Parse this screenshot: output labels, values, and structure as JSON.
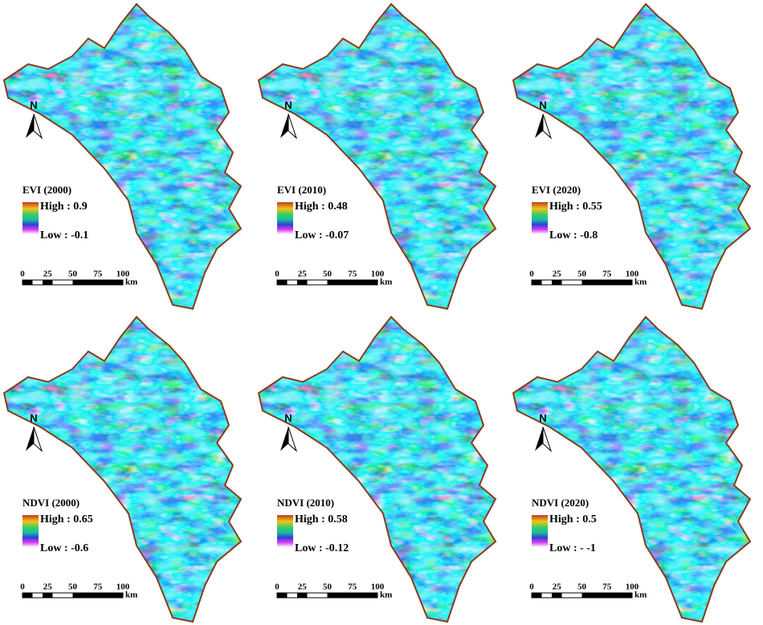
{
  "panels": [
    {
      "title": "EVI (2000)",
      "high": "High : 0.9",
      "low": "Low : -0.1",
      "north": "N",
      "scale_ticks": [
        "0",
        "25",
        "50",
        "75",
        "100"
      ],
      "scale_unit": "km"
    },
    {
      "title": "EVI (2010)",
      "high": "High : 0.48",
      "low": "Low : -0.07",
      "north": "N",
      "scale_ticks": [
        "0",
        "25",
        "50",
        "75",
        "100"
      ],
      "scale_unit": "km"
    },
    {
      "title": "EVI (2020)",
      "high": "High : 0.55",
      "low": "Low :  -0.8",
      "north": "N",
      "scale_ticks": [
        "0",
        "25",
        "50",
        "75",
        "100"
      ],
      "scale_unit": "km"
    },
    {
      "title": "NDVI (2000)",
      "high": "High : 0.65",
      "low": "Low : -0.6",
      "north": "N",
      "scale_ticks": [
        "0",
        "25",
        "50",
        "75",
        "100"
      ],
      "scale_unit": "km"
    },
    {
      "title": "NDVI (2010)",
      "high": "High : 0.58",
      "low": "Low : -0.12",
      "north": "N",
      "scale_ticks": [
        "0",
        "25",
        "50",
        "75",
        "100"
      ],
      "scale_unit": "km"
    },
    {
      "title": "NDVI (2020)",
      "high": "High :  0.5",
      "low": "Low : - -1",
      "north": "N",
      "scale_ticks": [
        "0",
        "25",
        "50",
        "75",
        "100"
      ],
      "scale_unit": "km"
    }
  ]
}
